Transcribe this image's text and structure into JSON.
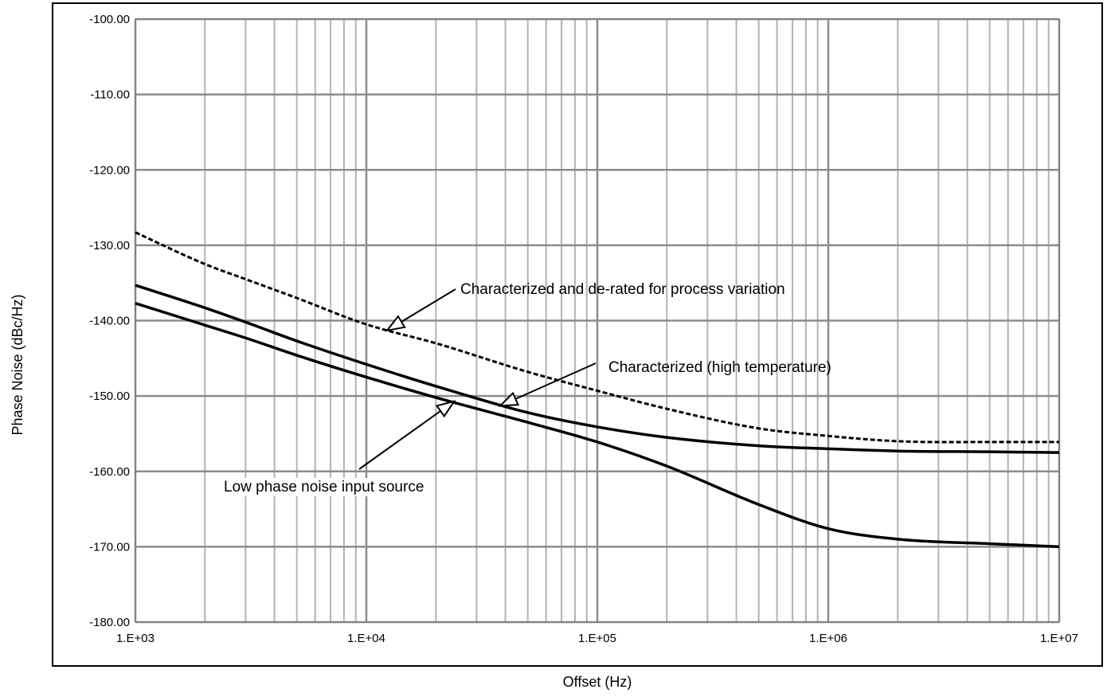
{
  "chart_data": {
    "type": "line",
    "title": "",
    "xlabel": "Offset (Hz)",
    "ylabel": "Phase Noise (dBc/Hz)",
    "x_scale": "log",
    "xlim": [
      1000,
      10000000
    ],
    "ylim": [
      -180,
      -100
    ],
    "x_ticks": [
      1000,
      10000,
      100000,
      1000000,
      10000000
    ],
    "x_tick_labels": [
      "1.E+03",
      "1.E+04",
      "1.E+05",
      "1.E+06",
      "1.E+07"
    ],
    "y_ticks": [
      -100,
      -110,
      -120,
      -130,
      -140,
      -150,
      -160,
      -170,
      -180
    ],
    "y_tick_labels": [
      "-100.00",
      "-110.00",
      "-120.00",
      "-130.00",
      "-140.00",
      "-150.00",
      "-160.00",
      "-170.00",
      "-180.00"
    ],
    "grid": true,
    "series": [
      {
        "style": "dashed",
        "x": [
          1000,
          2000,
          3000,
          5000,
          10000,
          20000,
          50000,
          100000,
          200000,
          500000,
          1000000,
          2000000,
          5000000,
          10000000
        ],
        "y": [
          -128.3,
          -132.5,
          -134.5,
          -137,
          -140.5,
          -143,
          -146.8,
          -149.3,
          -151.7,
          -154.3,
          -155.3,
          -156,
          -156.1,
          -156.1
        ]
      },
      {
        "style": "solid",
        "x": [
          1000,
          2000,
          3000,
          5000,
          10000,
          20000,
          50000,
          100000,
          200000,
          500000,
          1000000,
          2000000,
          5000000,
          10000000
        ],
        "y": [
          -135.3,
          -138.3,
          -140.2,
          -142.7,
          -145.8,
          -148.7,
          -152.2,
          -154.1,
          -155.5,
          -156.6,
          -157,
          -157.3,
          -157.4,
          -157.5
        ]
      },
      {
        "style": "solid",
        "x": [
          1000,
          2000,
          3000,
          5000,
          10000,
          20000,
          50000,
          100000,
          200000,
          500000,
          1000000,
          2000000,
          5000000,
          10000000
        ],
        "y": [
          -137.7,
          -140.6,
          -142.3,
          -144.6,
          -147.5,
          -150.2,
          -153.5,
          -156.1,
          -159.3,
          -164.4,
          -167.6,
          -169,
          -169.6,
          -170
        ]
      }
    ],
    "annotations": [
      {
        "text": "Characterized and de-rated for process variation",
        "target": [
          12300,
          -141.3
        ]
      },
      {
        "text": "Characterized (high temperature)",
        "target": [
          38000,
          -151.3
        ]
      },
      {
        "text": "Low phase noise input source",
        "target": [
          24000,
          -150.7
        ]
      }
    ]
  }
}
